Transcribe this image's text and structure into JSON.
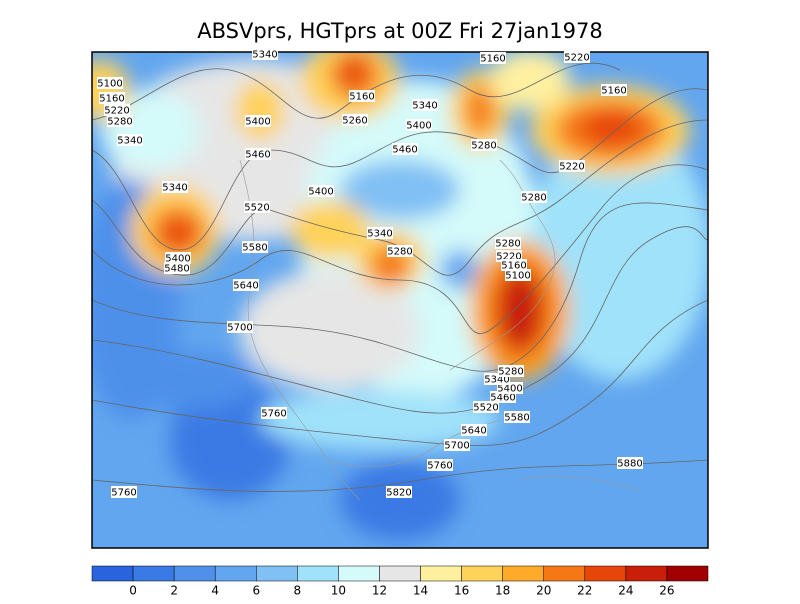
{
  "title": "ABSVprs, HGTprs at 00Z Fri 27jan1978",
  "contour_labels": [
    "5100",
    "5160",
    "5220",
    "5280",
    "5340",
    "5340",
    "5400",
    "5480",
    "5400",
    "5460",
    "5520",
    "5580",
    "5640",
    "5700",
    "5760",
    "5760",
    "5820",
    "5760",
    "5700",
    "5640",
    "5580",
    "5520",
    "5460",
    "5400",
    "5340",
    "5280",
    "5280",
    "5220",
    "5160",
    "5100",
    "5280",
    "5340",
    "5400",
    "5460",
    "5400",
    "5340",
    "5260",
    "5160",
    "5160",
    "5220",
    "5160",
    "5220",
    "5280",
    "5280",
    "5880",
    "5340"
  ],
  "colorbar": {
    "labels": [
      "0",
      "2",
      "4",
      "6",
      "8",
      "10",
      "12",
      "14",
      "16",
      "18",
      "20",
      "22",
      "24",
      "26"
    ],
    "colors": [
      "#2a64dc",
      "#3a7ae4",
      "#4e90ea",
      "#62a6ef",
      "#80c0f4",
      "#a0e2fa",
      "#d4fafa",
      "#e6e6e6",
      "#fff0a0",
      "#ffd25a",
      "#ffaa28",
      "#f57814",
      "#e6460a",
      "#c81e0a",
      "#a00000"
    ]
  }
}
